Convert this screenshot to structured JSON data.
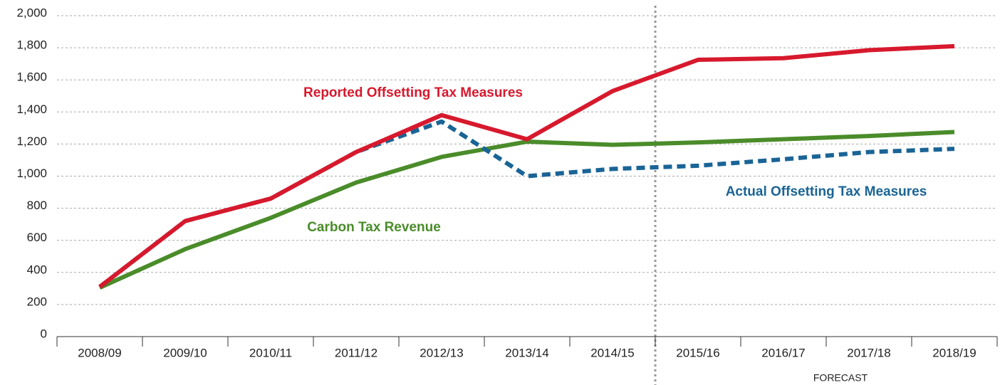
{
  "chart_data": {
    "type": "line",
    "categories": [
      "2008/09",
      "2009/10",
      "2010/11",
      "2011/12",
      "2012/13",
      "2013/14",
      "2014/15",
      "2015/16",
      "2016/17",
      "2017/18",
      "2018/19"
    ],
    "series": [
      {
        "name": "Carbon Tax Revenue",
        "color": "#4a8c2a",
        "dashed": false,
        "values": [
          305,
          545,
          740,
          960,
          1120,
          1215,
          1195,
          1210,
          1230,
          1250,
          1275
        ]
      },
      {
        "name": "Actual Offsetting Tax Measures",
        "color": "#1a6496",
        "dashed": true,
        "values": [
          310,
          720,
          860,
          1150,
          1340,
          1000,
          1045,
          1065,
          1105,
          1150,
          1170
        ]
      },
      {
        "name": "Reported Offsetting Tax Measures",
        "color": "#d7192d",
        "dashed": false,
        "values": [
          310,
          720,
          860,
          1150,
          1380,
          1230,
          1530,
          1725,
          1735,
          1785,
          1810
        ]
      }
    ],
    "annotation": "FORECAST",
    "ylim": [
      0,
      2000
    ],
    "yticks": [
      0,
      200,
      400,
      600,
      800,
      {
        "value": 1000,
        "label": "1,000"
      },
      {
        "value": 1200,
        "label": "1,200"
      },
      {
        "value": 1400,
        "label": "1,400"
      },
      {
        "value": 1600,
        "label": "1,600"
      },
      {
        "value": 1800,
        "label": "1,800"
      },
      {
        "value": 2000,
        "label": "2,000"
      }
    ],
    "grid": true
  }
}
